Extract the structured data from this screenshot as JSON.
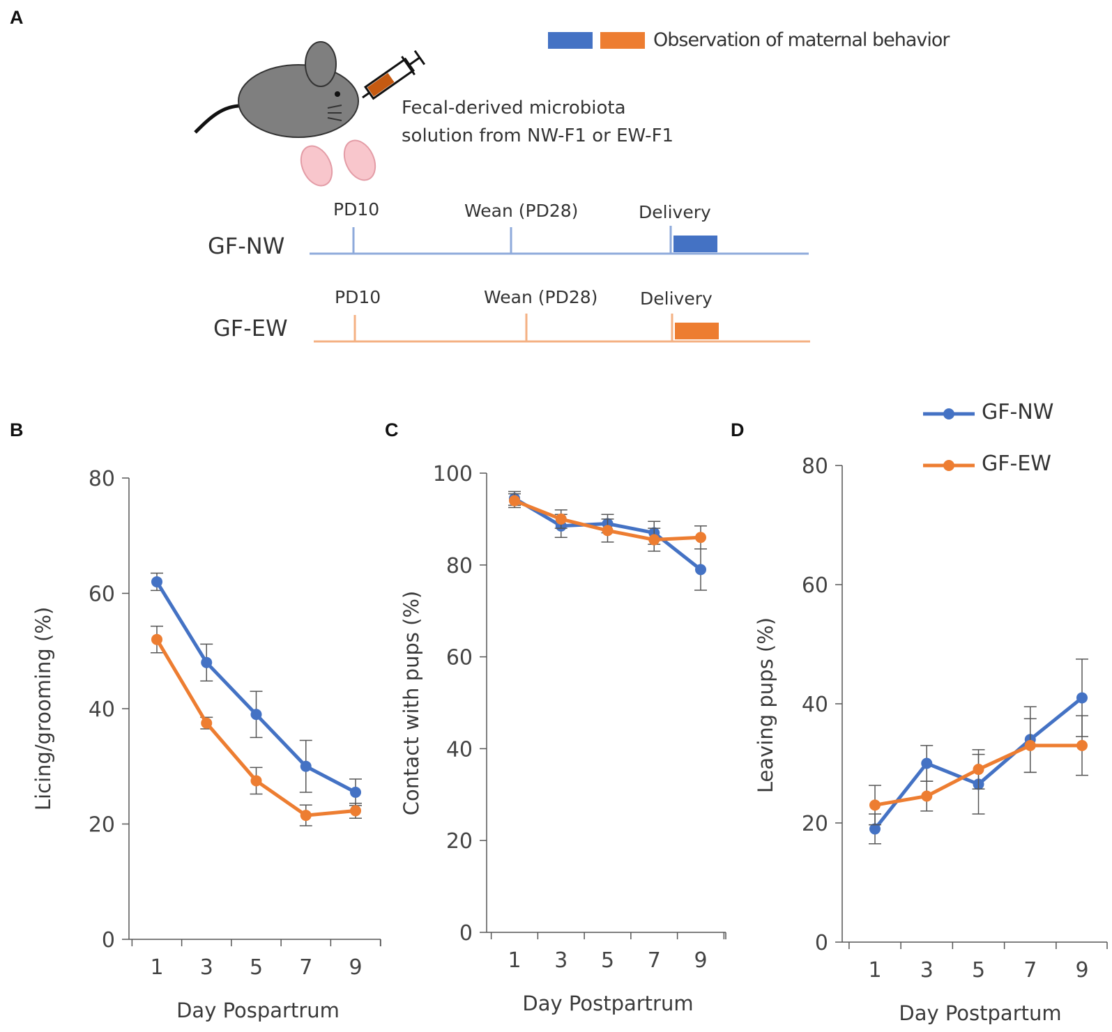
{
  "panel_a": {
    "letter": "A",
    "legend_text": "Observation of maternal behavior",
    "injection_text_line1": "Fecal-derived microbiota",
    "injection_text_line2": "solution from NW-F1 or EW-F1",
    "timelines": [
      {
        "group": "GF-NW",
        "markers": [
          "PD10",
          "Wean (PD28)",
          "Delivery"
        ]
      },
      {
        "group": "GF-EW",
        "markers": [
          "PD10",
          "Wean (PD28)",
          "Delivery"
        ]
      }
    ]
  },
  "colors": {
    "nw": "#4472C4",
    "ew": "#ED7D31",
    "nw_light": "#8EAADB",
    "ew_light": "#F4B183"
  },
  "legend": {
    "nw": "GF-NW",
    "ew": "GF-EW"
  },
  "chart_data": [
    {
      "panel": "B",
      "type": "line",
      "x": [
        1,
        3,
        5,
        7,
        9
      ],
      "xlabel": "Day Pospartrum",
      "ylabel": "Licing/grooming (%)",
      "ylim": [
        0,
        80
      ],
      "yticks": [
        0,
        20,
        40,
        60,
        80
      ],
      "series": [
        {
          "name": "GF-NW",
          "values": [
            62,
            48,
            39,
            30,
            25.5
          ],
          "errors": [
            1.5,
            3.2,
            4,
            4.5,
            2.3
          ]
        },
        {
          "name": "GF-EW",
          "values": [
            52,
            37.5,
            27.5,
            21.5,
            22.3
          ],
          "errors": [
            2.3,
            1,
            2.3,
            1.8,
            1.3
          ]
        }
      ]
    },
    {
      "panel": "C",
      "type": "line",
      "x": [
        1,
        3,
        5,
        7,
        9
      ],
      "xlabel": "Day Postpartrum",
      "ylabel": "Contact with pups (%)",
      "ylim": [
        0,
        100
      ],
      "yticks": [
        0,
        20,
        40,
        60,
        80,
        100
      ],
      "series": [
        {
          "name": "GF-NW",
          "values": [
            94.5,
            88.5,
            89,
            87,
            79
          ],
          "errors": [
            1.5,
            2.5,
            2,
            2.5,
            4.5
          ]
        },
        {
          "name": "GF-EW",
          "values": [
            94,
            90,
            87.5,
            85.5,
            86
          ],
          "errors": [
            1.5,
            2,
            2.5,
            2.5,
            2.5
          ]
        }
      ]
    },
    {
      "panel": "D",
      "type": "line",
      "x": [
        1,
        3,
        5,
        7,
        9
      ],
      "xlabel": "Day Postpartum",
      "ylabel": "Leaving pups (%)",
      "ylim": [
        0,
        80
      ],
      "yticks": [
        0,
        20,
        40,
        60,
        80
      ],
      "series": [
        {
          "name": "GF-NW",
          "values": [
            19,
            30,
            26.5,
            34,
            41
          ],
          "errors": [
            2.5,
            3,
            5,
            5.5,
            6.5
          ]
        },
        {
          "name": "GF-EW",
          "values": [
            23,
            24.5,
            29,
            33,
            33
          ],
          "errors": [
            3.3,
            2.5,
            3.3,
            4.5,
            5
          ]
        }
      ]
    }
  ]
}
